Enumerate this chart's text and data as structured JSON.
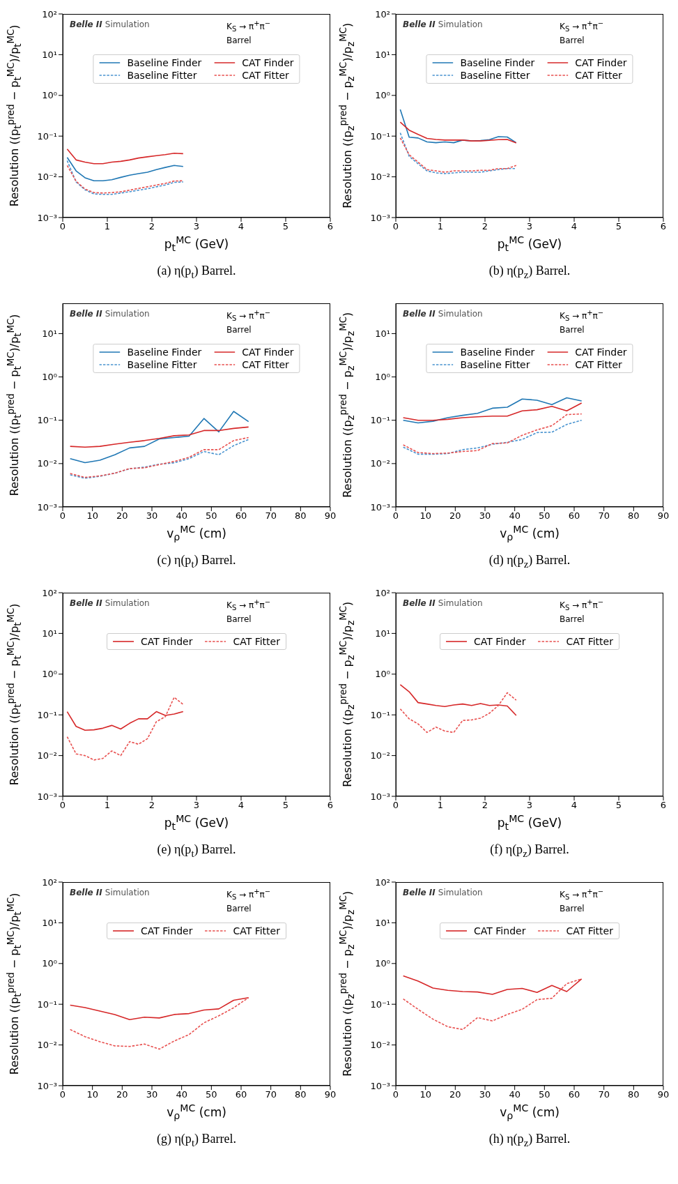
{
  "chart_data": [
    {
      "type": "line",
      "title": "(a) η(p$_{t}$) Barrel.",
      "xlabel": "p$_{t}$$^{MC}$ (GeV)",
      "ylabel": "Resolution ((p$_{t}$$^{pred}$ − p$_{t}$$^{MC}$)/p$_{t}$$^{MC}$)",
      "annotations": [
        "Belle II",
        "Simulation",
        "K$_{S}$ → π$^{+}$π$^{−}$",
        "Barrel"
      ],
      "log": "y",
      "legend": "top",
      "xlim": [
        0,
        6
      ],
      "xticks": [
        0,
        1,
        2,
        3,
        4,
        5,
        6
      ],
      "ylim": [
        0.001,
        100
      ],
      "yticks": [
        {
          "value": 0.001,
          "label": "10⁻³"
        },
        {
          "value": 0.01,
          "label": "10⁻²"
        },
        {
          "value": 0.1,
          "label": "10⁻¹"
        },
        {
          "value": 1,
          "label": "10⁰"
        },
        {
          "value": 10,
          "label": "10¹"
        },
        {
          "value": 100,
          "label": "10²"
        }
      ],
      "x": [
        0.1,
        0.3,
        0.5,
        0.7,
        0.9,
        1.1,
        1.3,
        1.5,
        1.7,
        1.9,
        2.1,
        2.3,
        2.5,
        2.7
      ],
      "series": [
        {
          "name": "Baseline Finder",
          "color": "#1f77b4",
          "line_style": "solid",
          "values": [
            0.03,
            0.014,
            0.0095,
            0.008,
            0.008,
            0.0085,
            0.0097,
            0.011,
            0.012,
            0.013,
            0.015,
            0.017,
            0.019,
            0.018
          ]
        },
        {
          "name": "Baseline Fitter",
          "color": "#4a94d0",
          "line_style": "dashed",
          "values": [
            0.025,
            0.0075,
            0.0048,
            0.0038,
            0.0037,
            0.0037,
            0.004,
            0.0043,
            0.0047,
            0.0051,
            0.0057,
            0.0063,
            0.0073,
            0.0075
          ]
        },
        {
          "name": "CAT Finder",
          "color": "#d62728",
          "line_style": "solid",
          "values": [
            0.048,
            0.026,
            0.023,
            0.021,
            0.021,
            0.023,
            0.024,
            0.026,
            0.029,
            0.031,
            0.033,
            0.035,
            0.038,
            0.037
          ]
        },
        {
          "name": "CAT Fitter",
          "color": "#e8504f",
          "line_style": "dashed",
          "values": [
            0.019,
            0.0078,
            0.005,
            0.0041,
            0.004,
            0.0041,
            0.0043,
            0.0047,
            0.0052,
            0.0057,
            0.0063,
            0.0069,
            0.0079,
            0.008
          ]
        }
      ]
    },
    {
      "type": "line",
      "title": "(b) η(p$_{z}$) Barrel.",
      "xlabel": "p$_{t}$$^{MC}$ (GeV)",
      "ylabel": "Resolution ((p$_{z}$$^{pred}$ − p$_{z}$$^{MC}$)/p$_{z}$$^{MC}$)",
      "annotations": [
        "Belle II",
        "Simulation",
        "K$_{S}$ → π$^{+}$π$^{−}$",
        "Barrel"
      ],
      "log": "y",
      "legend": "top",
      "xlim": [
        0,
        6
      ],
      "xticks": [
        0,
        1,
        2,
        3,
        4,
        5,
        6
      ],
      "ylim": [
        0.001,
        100
      ],
      "yticks": [
        {
          "value": 0.001,
          "label": "10⁻³"
        },
        {
          "value": 0.01,
          "label": "10⁻²"
        },
        {
          "value": 0.1,
          "label": "10⁻¹"
        },
        {
          "value": 1,
          "label": "10⁰"
        },
        {
          "value": 10,
          "label": "10¹"
        },
        {
          "value": 100,
          "label": "10²"
        }
      ],
      "x": [
        0.1,
        0.3,
        0.5,
        0.7,
        0.9,
        1.1,
        1.3,
        1.5,
        1.7,
        1.9,
        2.1,
        2.3,
        2.5,
        2.7
      ],
      "series": [
        {
          "name": "Baseline Finder",
          "color": "#1f77b4",
          "line_style": "solid",
          "values": [
            0.45,
            0.094,
            0.09,
            0.072,
            0.069,
            0.072,
            0.069,
            0.08,
            0.076,
            0.078,
            0.082,
            0.097,
            0.095,
            0.069
          ]
        },
        {
          "name": "Baseline Fitter",
          "color": "#4a94d0",
          "line_style": "dashed",
          "values": [
            0.12,
            0.032,
            0.021,
            0.014,
            0.0125,
            0.012,
            0.0125,
            0.013,
            0.013,
            0.013,
            0.014,
            0.015,
            0.016,
            0.016
          ]
        },
        {
          "name": "CAT Finder",
          "color": "#d62728",
          "line_style": "solid",
          "values": [
            0.22,
            0.14,
            0.11,
            0.088,
            0.083,
            0.08,
            0.08,
            0.08,
            0.076,
            0.076,
            0.079,
            0.082,
            0.083,
            0.068
          ]
        },
        {
          "name": "CAT Fitter",
          "color": "#e8504f",
          "line_style": "dashed",
          "values": [
            0.09,
            0.035,
            0.023,
            0.015,
            0.014,
            0.013,
            0.014,
            0.014,
            0.014,
            0.0145,
            0.0145,
            0.016,
            0.016,
            0.019
          ]
        }
      ]
    },
    {
      "type": "line",
      "title": "(c) η(p$_{t}$) Barrel.",
      "xlabel": "v$_{ρ}$$^{MC}$ (cm)",
      "ylabel": "Resolution ((p$_{t}$$^{pred}$ − p$_{t}$$^{MC}$)/p$_{t}$$^{MC}$)",
      "annotations": [
        "Belle II",
        "Simulation",
        "K$_{S}$ → π$^{+}$π$^{−}$",
        "Barrel"
      ],
      "log": "y",
      "legend": "top",
      "xlim": [
        0,
        90
      ],
      "xticks": [
        0,
        10,
        20,
        30,
        40,
        50,
        60,
        70,
        80,
        90
      ],
      "ylim": [
        0.001,
        50
      ],
      "yticks": [
        {
          "value": 0.001,
          "label": "10⁻³"
        },
        {
          "value": 0.01,
          "label": "10⁻²"
        },
        {
          "value": 0.1,
          "label": "10⁻¹"
        },
        {
          "value": 1,
          "label": "10⁰"
        },
        {
          "value": 10,
          "label": "10¹"
        }
      ],
      "x": [
        2.5,
        7.5,
        12.5,
        17.5,
        22.5,
        27.5,
        32.5,
        37.5,
        42.5,
        47.5,
        52.5,
        57.5,
        62.5
      ],
      "series": [
        {
          "name": "Baseline Finder",
          "color": "#1f77b4",
          "line_style": "solid",
          "values": [
            0.013,
            0.0105,
            0.012,
            0.016,
            0.023,
            0.025,
            0.037,
            0.04,
            0.043,
            0.11,
            0.054,
            0.16,
            0.093
          ]
        },
        {
          "name": "Baseline Fitter",
          "color": "#4a94d0",
          "line_style": "dashed",
          "values": [
            0.0055,
            0.0046,
            0.0051,
            0.006,
            0.0076,
            0.0083,
            0.0097,
            0.0104,
            0.013,
            0.019,
            0.016,
            0.026,
            0.036
          ]
        },
        {
          "name": "CAT Finder",
          "color": "#d62728",
          "line_style": "solid",
          "values": [
            0.025,
            0.024,
            0.025,
            0.028,
            0.031,
            0.034,
            0.038,
            0.044,
            0.046,
            0.058,
            0.058,
            0.065,
            0.07
          ]
        },
        {
          "name": "CAT Fitter",
          "color": "#e8504f",
          "line_style": "dashed",
          "values": [
            0.0059,
            0.0048,
            0.0052,
            0.006,
            0.0077,
            0.008,
            0.0095,
            0.0112,
            0.014,
            0.021,
            0.021,
            0.034,
            0.04
          ]
        }
      ]
    },
    {
      "type": "line",
      "title": "(d) η(p$_{z}$) Barrel.",
      "xlabel": "v$_{ρ}$$^{MC}$ (cm)",
      "ylabel": "Resolution ((p$_{z}$$^{pred}$ − p$_{z}$$^{MC}$)/p$_{z}$$^{MC}$)",
      "annotations": [
        "Belle II",
        "Simulation",
        "K$_{S}$ → π$^{+}$π$^{−}$",
        "Barrel"
      ],
      "log": "y",
      "legend": "top",
      "xlim": [
        0,
        90
      ],
      "xticks": [
        0,
        10,
        20,
        30,
        40,
        50,
        60,
        70,
        80,
        90
      ],
      "ylim": [
        0.001,
        50
      ],
      "yticks": [
        {
          "value": 0.001,
          "label": "10⁻³"
        },
        {
          "value": 0.01,
          "label": "10⁻²"
        },
        {
          "value": 0.1,
          "label": "10⁻¹"
        },
        {
          "value": 1,
          "label": "10⁰"
        },
        {
          "value": 10,
          "label": "10¹"
        }
      ],
      "x": [
        2.5,
        7.5,
        12.5,
        17.5,
        22.5,
        27.5,
        32.5,
        37.5,
        42.5,
        47.5,
        52.5,
        57.5,
        62.5
      ],
      "series": [
        {
          "name": "Baseline Finder",
          "color": "#1f77b4",
          "line_style": "solid",
          "values": [
            0.1,
            0.087,
            0.095,
            0.115,
            0.13,
            0.145,
            0.19,
            0.2,
            0.31,
            0.29,
            0.23,
            0.33,
            0.28
          ]
        },
        {
          "name": "Baseline Fitter",
          "color": "#4a94d0",
          "line_style": "dashed",
          "values": [
            0.024,
            0.0165,
            0.0165,
            0.017,
            0.021,
            0.023,
            0.028,
            0.031,
            0.036,
            0.052,
            0.053,
            0.08,
            0.1
          ]
        },
        {
          "name": "CAT Finder",
          "color": "#d62728",
          "line_style": "solid",
          "values": [
            0.115,
            0.1,
            0.1,
            0.105,
            0.115,
            0.12,
            0.125,
            0.125,
            0.165,
            0.175,
            0.21,
            0.165,
            0.25
          ]
        },
        {
          "name": "CAT Fitter",
          "color": "#e8504f",
          "line_style": "dashed",
          "values": [
            0.027,
            0.018,
            0.017,
            0.0175,
            0.019,
            0.02,
            0.029,
            0.03,
            0.045,
            0.06,
            0.075,
            0.135,
            0.14
          ]
        }
      ]
    },
    {
      "type": "line",
      "title": "(e) η(p$_{t}$) Barrel.",
      "xlabel": "p$_{t}$$^{MC}$ (GeV)",
      "ylabel": "Resolution ((p$_{t}$$^{pred}$ − p$_{t}$$^{MC}$)/p$_{t}$$^{MC}$)",
      "annotations": [
        "Belle II",
        "Simulation",
        "K$_{S}$ → π$^{+}$π$^{−}$",
        "Barrel"
      ],
      "log": "y",
      "legend": "top",
      "xlim": [
        0,
        6
      ],
      "xticks": [
        0,
        1,
        2,
        3,
        4,
        5,
        6
      ],
      "ylim": [
        0.001,
        100
      ],
      "yticks": [
        {
          "value": 0.001,
          "label": "10⁻³"
        },
        {
          "value": 0.01,
          "label": "10⁻²"
        },
        {
          "value": 0.1,
          "label": "10⁻¹"
        },
        {
          "value": 1,
          "label": "10⁰"
        },
        {
          "value": 10,
          "label": "10¹"
        },
        {
          "value": 100,
          "label": "10²"
        }
      ],
      "x": [
        0.1,
        0.3,
        0.5,
        0.7,
        0.9,
        1.1,
        1.3,
        1.5,
        1.7,
        1.9,
        2.1,
        2.3,
        2.5,
        2.7
      ],
      "series": [
        {
          "name": "CAT Finder",
          "color": "#d62728",
          "line_style": "solid",
          "values": [
            0.12,
            0.052,
            0.042,
            0.043,
            0.047,
            0.055,
            0.045,
            0.062,
            0.08,
            0.08,
            0.12,
            0.097,
            0.105,
            0.12
          ]
        },
        {
          "name": "CAT Fitter",
          "color": "#e8504f",
          "line_style": "dashed",
          "values": [
            0.029,
            0.011,
            0.01,
            0.0078,
            0.0085,
            0.013,
            0.01,
            0.022,
            0.019,
            0.026,
            0.068,
            0.09,
            0.27,
            0.18
          ]
        }
      ]
    },
    {
      "type": "line",
      "title": "(f) η(p$_{z}$) Barrel.",
      "xlabel": "p$_{t}$$^{MC}$ (GeV)",
      "ylabel": "Resolution ((p$_{z}$$^{pred}$ − p$_{z}$$^{MC}$)/p$_{z}$$^{MC}$)",
      "annotations": [
        "Belle II",
        "Simulation",
        "K$_{S}$ → π$^{+}$π$^{−}$",
        "Barrel"
      ],
      "log": "y",
      "legend": "top",
      "xlim": [
        0,
        6
      ],
      "xticks": [
        0,
        1,
        2,
        3,
        4,
        5,
        6
      ],
      "ylim": [
        0.001,
        100
      ],
      "yticks": [
        {
          "value": 0.001,
          "label": "10⁻³"
        },
        {
          "value": 0.01,
          "label": "10⁻²"
        },
        {
          "value": 0.1,
          "label": "10⁻¹"
        },
        {
          "value": 1,
          "label": "10⁰"
        },
        {
          "value": 10,
          "label": "10¹"
        },
        {
          "value": 100,
          "label": "10²"
        }
      ],
      "x": [
        0.1,
        0.3,
        0.5,
        0.7,
        0.9,
        1.1,
        1.3,
        1.5,
        1.7,
        1.9,
        2.1,
        2.3,
        2.5,
        2.7
      ],
      "series": [
        {
          "name": "CAT Finder",
          "color": "#d62728",
          "line_style": "solid",
          "values": [
            0.55,
            0.37,
            0.2,
            0.185,
            0.17,
            0.16,
            0.175,
            0.185,
            0.17,
            0.19,
            0.17,
            0.175,
            0.165,
            0.097
          ]
        },
        {
          "name": "CAT Fitter",
          "color": "#e8504f",
          "line_style": "dashed",
          "values": [
            0.14,
            0.08,
            0.06,
            0.037,
            0.05,
            0.04,
            0.037,
            0.073,
            0.075,
            0.083,
            0.11,
            0.17,
            0.35,
            0.23
          ]
        }
      ]
    },
    {
      "type": "line",
      "title": "(g) η(p$_{t}$) Barrel.",
      "xlabel": "v$_{ρ}$$^{MC}$ (cm)",
      "ylabel": "Resolution ((p$_{t}$$^{pred}$ − p$_{t}$$^{MC}$)/p$_{t}$$^{MC}$)",
      "annotations": [
        "Belle II",
        "Simulation",
        "K$_{S}$ → π$^{+}$π$^{−}$",
        "Barrel"
      ],
      "log": "y",
      "legend": "top",
      "xlim": [
        0,
        90
      ],
      "xticks": [
        0,
        10,
        20,
        30,
        40,
        50,
        60,
        70,
        80,
        90
      ],
      "ylim": [
        0.001,
        100
      ],
      "yticks": [
        {
          "value": 0.001,
          "label": "10⁻³"
        },
        {
          "value": 0.01,
          "label": "10⁻²"
        },
        {
          "value": 0.1,
          "label": "10⁻¹"
        },
        {
          "value": 1,
          "label": "10⁰"
        },
        {
          "value": 10,
          "label": "10¹"
        },
        {
          "value": 100,
          "label": "10²"
        }
      ],
      "x": [
        2.5,
        7.5,
        12.5,
        17.5,
        22.5,
        27.5,
        32.5,
        37.5,
        42.5,
        47.5,
        52.5,
        57.5,
        62.5
      ],
      "series": [
        {
          "name": "CAT Finder",
          "color": "#d62728",
          "line_style": "solid",
          "values": [
            0.095,
            0.083,
            0.068,
            0.056,
            0.042,
            0.048,
            0.046,
            0.056,
            0.059,
            0.072,
            0.077,
            0.125,
            0.145
          ]
        },
        {
          "name": "CAT Fitter",
          "color": "#e8504f",
          "line_style": "dashed",
          "values": [
            0.024,
            0.016,
            0.012,
            0.0095,
            0.0092,
            0.0105,
            0.0079,
            0.0125,
            0.018,
            0.035,
            0.052,
            0.082,
            0.145
          ]
        }
      ]
    },
    {
      "type": "line",
      "title": "(h) η(p$_{z}$) Barrel.",
      "xlabel": "v$_{ρ}$$^{MC}$ (cm)",
      "ylabel": "Resolution ((p$_{z}$$^{pred}$ − p$_{z}$$^{MC}$)/p$_{z}$$^{MC}$)",
      "annotations": [
        "Belle II",
        "Simulation",
        "K$_{S}$ → π$^{+}$π$^{−}$",
        "Barrel"
      ],
      "log": "y",
      "legend": "top",
      "xlim": [
        0,
        90
      ],
      "xticks": [
        0,
        10,
        20,
        30,
        40,
        50,
        60,
        70,
        80,
        90
      ],
      "ylim": [
        0.001,
        100
      ],
      "yticks": [
        {
          "value": 0.001,
          "label": "10⁻³"
        },
        {
          "value": 0.01,
          "label": "10⁻²"
        },
        {
          "value": 0.1,
          "label": "10⁻¹"
        },
        {
          "value": 1,
          "label": "10⁰"
        },
        {
          "value": 10,
          "label": "10¹"
        },
        {
          "value": 100,
          "label": "10²"
        }
      ],
      "x": [
        2.5,
        7.5,
        12.5,
        17.5,
        22.5,
        27.5,
        32.5,
        37.5,
        42.5,
        47.5,
        52.5,
        57.5,
        62.5
      ],
      "series": [
        {
          "name": "CAT Finder",
          "color": "#d62728",
          "line_style": "solid",
          "values": [
            0.5,
            0.37,
            0.25,
            0.22,
            0.205,
            0.2,
            0.175,
            0.23,
            0.245,
            0.195,
            0.29,
            0.205,
            0.42
          ]
        },
        {
          "name": "CAT Fitter",
          "color": "#e8504f",
          "line_style": "dashed",
          "values": [
            0.135,
            0.075,
            0.043,
            0.028,
            0.024,
            0.047,
            0.039,
            0.056,
            0.075,
            0.13,
            0.14,
            0.32,
            0.42
          ]
        }
      ]
    }
  ]
}
